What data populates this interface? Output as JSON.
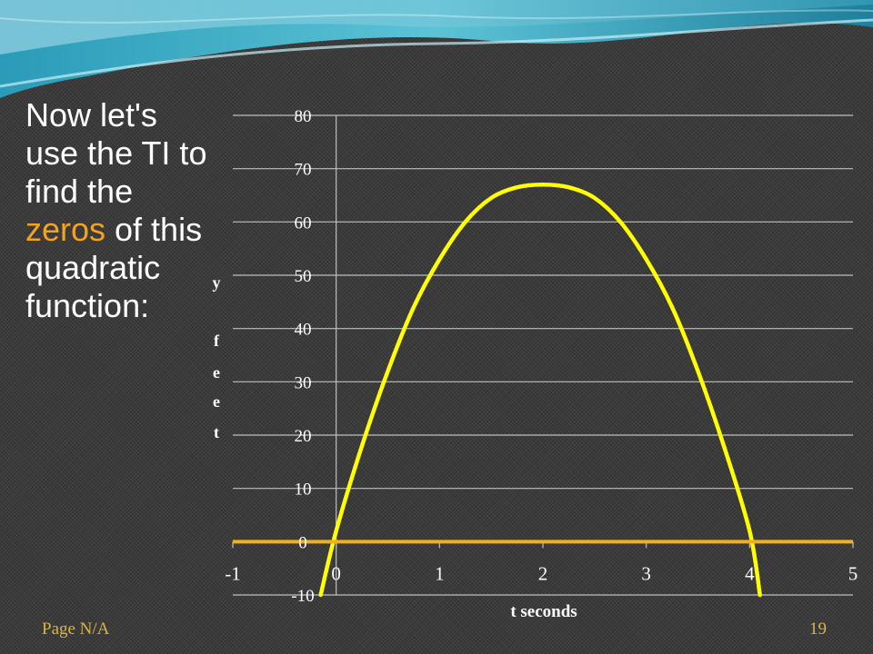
{
  "slide": {
    "text_before": "Now let's use the TI to find the ",
    "text_highlight": "zeros",
    "text_after": " of this quadratic function:",
    "highlight_color": "#f4a31f",
    "footer_left": "Page N/A",
    "page_number": "19"
  },
  "chart_data": {
    "type": "line",
    "ylabel_letters": [
      "y",
      "f",
      "e",
      "e",
      "t"
    ],
    "xlabel": "t seconds",
    "xlim": [
      -1,
      5
    ],
    "ylim": [
      -10,
      80
    ],
    "x_ticks": [
      "-1",
      "0",
      "1",
      "2",
      "3",
      "4",
      "5"
    ],
    "y_ticks": [
      "80",
      "70",
      "60",
      "50",
      "40",
      "30",
      "20",
      "10",
      "0",
      "-10"
    ],
    "grid": "horizontal",
    "series": [
      {
        "color": "#ffff00",
        "x": [
          -0.15,
          0,
          0.25,
          0.5,
          0.75,
          1,
          1.25,
          1.5,
          1.75,
          2,
          2.25,
          2.5,
          2.75,
          3,
          3.25,
          3.5,
          3.75,
          4,
          4.1
        ],
        "y": [
          -10,
          2,
          18,
          32,
          44,
          53,
          60,
          64.5,
          66.5,
          67,
          66.5,
          64.5,
          60,
          53,
          44,
          32,
          18,
          2,
          -10
        ]
      },
      {
        "color": "#f0b020",
        "x": [
          -1,
          5
        ],
        "y": [
          0,
          0
        ]
      }
    ]
  }
}
